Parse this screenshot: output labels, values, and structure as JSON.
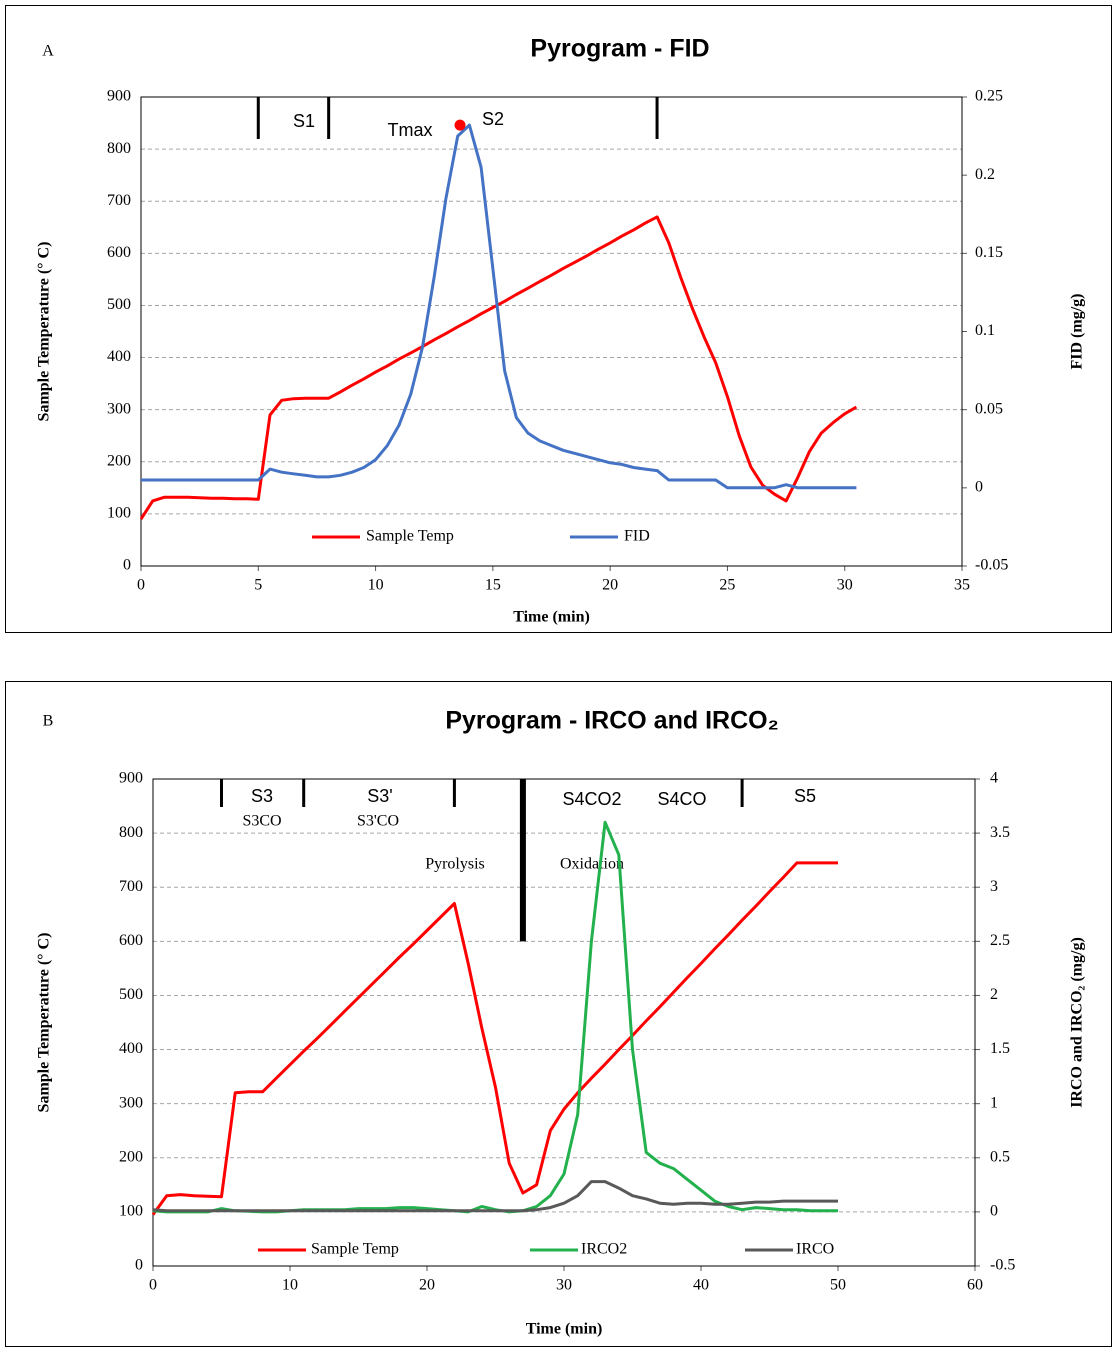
{
  "chart_data": [
    {
      "type": "line",
      "panel": "A",
      "title": "Pyrogram - FID",
      "xlabel": "Time (min)",
      "ylabel": "Sample Temperature (° C)",
      "y2label": "FID (mg/g)",
      "xlim": [
        0,
        35
      ],
      "xticks": [
        0,
        5,
        10,
        15,
        20,
        25,
        30,
        35
      ],
      "ylim": [
        0,
        900
      ],
      "yticks": [
        0,
        100,
        200,
        300,
        400,
        500,
        600,
        700,
        800,
        900
      ],
      "y2lim": [
        -0.05,
        0.25
      ],
      "y2ticks": [
        -0.05,
        0,
        0.05,
        0.1,
        0.15,
        0.2,
        0.25
      ],
      "grid": true,
      "x": [
        0,
        0.5,
        1,
        1.5,
        2,
        2.5,
        3,
        3.5,
        4,
        4.5,
        5,
        5.5,
        6,
        6.5,
        7,
        7.5,
        8,
        8.5,
        9,
        9.5,
        10,
        10.5,
        11,
        11.5,
        12,
        12.5,
        13,
        13.5,
        14,
        14.5,
        15,
        15.5,
        16,
        16.5,
        17,
        17.5,
        18,
        18.5,
        19,
        19.5,
        20,
        20.5,
        21,
        21.5,
        22,
        22.5,
        23,
        23.5,
        24,
        24.5,
        25,
        25.5,
        26,
        26.5,
        27,
        27.5,
        28,
        28.5,
        29,
        29.5,
        30,
        30.5
      ],
      "series": [
        {
          "name": "Sample Temp",
          "color": "#ff0000",
          "values": [
            90,
            125,
            132,
            132,
            132,
            131,
            130,
            130,
            129,
            129,
            128,
            290,
            318,
            321,
            322,
            322,
            322,
            334,
            347,
            359,
            372,
            384,
            397,
            409,
            421,
            434,
            446,
            459,
            471,
            484,
            496,
            508,
            521,
            533,
            546,
            558,
            571,
            583,
            595,
            608,
            620,
            633,
            645,
            658,
            670,
            620,
            555,
            495,
            440,
            390,
            325,
            250,
            190,
            155,
            138,
            125,
            170,
            220,
            255,
            275,
            292,
            305
          ]
        },
        {
          "name": "FID",
          "color": "#4472c4",
          "axis": "y2",
          "values": [
            0.005,
            0.005,
            0.005,
            0.005,
            0.005,
            0.005,
            0.005,
            0.005,
            0.005,
            0.005,
            0.005,
            0.012,
            0.01,
            0.009,
            0.008,
            0.007,
            0.007,
            0.008,
            0.01,
            0.013,
            0.018,
            0.027,
            0.04,
            0.06,
            0.09,
            0.135,
            0.185,
            0.225,
            0.232,
            0.205,
            0.14,
            0.075,
            0.045,
            0.035,
            0.03,
            0.027,
            0.024,
            0.022,
            0.02,
            0.018,
            0.016,
            0.015,
            0.013,
            0.012,
            0.011,
            0.005,
            0.005,
            0.005,
            0.005,
            0.005,
            0,
            0,
            0,
            0,
            0,
            0.002,
            0,
            0,
            0,
            0,
            0,
            0
          ]
        }
      ],
      "marker": {
        "x": 13.6,
        "y": 0.232,
        "axis": "y2",
        "color": "#ff0000"
      },
      "dividers": [
        5,
        8,
        22
      ],
      "annotations": [
        "S1",
        "Tmax",
        "S2"
      ]
    },
    {
      "type": "line",
      "panel": "B",
      "title": "Pyrogram - IRCO and IRCO₂",
      "xlabel": "Time (min)",
      "ylabel": "Sample Temperature (° C)",
      "y2label": "IRCO and IRCO₂  (mg/g)",
      "xlim": [
        0,
        60
      ],
      "xticks": [
        0,
        10,
        20,
        30,
        40,
        50,
        60
      ],
      "ylim": [
        0,
        900
      ],
      "yticks": [
        0,
        100,
        200,
        300,
        400,
        500,
        600,
        700,
        800,
        900
      ],
      "y2lim": [
        -0.5,
        4
      ],
      "y2ticks": [
        -0.5,
        0,
        0.5,
        1,
        1.5,
        2,
        2.5,
        3,
        3.5,
        4
      ],
      "grid": true,
      "x": [
        0,
        1,
        2,
        3,
        4,
        5,
        6,
        7,
        8,
        9,
        10,
        11,
        12,
        13,
        14,
        15,
        16,
        17,
        18,
        19,
        20,
        21,
        22,
        23,
        24,
        25,
        26,
        27,
        28,
        29,
        30,
        31,
        32,
        33,
        34,
        35,
        36,
        37,
        38,
        39,
        40,
        41,
        42,
        43,
        44,
        45,
        46,
        47,
        48,
        49,
        50
      ],
      "series": [
        {
          "name": "Sample Temp",
          "color": "#ff0000",
          "values": [
            95,
            130,
            132,
            130,
            129,
            128,
            320,
            322,
            322,
            347,
            372,
            397,
            421,
            446,
            471,
            496,
            521,
            546,
            571,
            595,
            620,
            645,
            670,
            560,
            440,
            330,
            190,
            135,
            150,
            250,
            290,
            320,
            347,
            373,
            400,
            426,
            453,
            479,
            506,
            533,
            559,
            586,
            612,
            639,
            665,
            692,
            718,
            745,
            745,
            745,
            745
          ]
        },
        {
          "name": "IRCO2",
          "color": "#22b14c",
          "axis": "y2",
          "values": [
            0.01,
            0,
            0,
            0,
            0,
            0.03,
            0.01,
            0.005,
            0,
            0,
            0.01,
            0.02,
            0.02,
            0.02,
            0.02,
            0.03,
            0.03,
            0.03,
            0.04,
            0.04,
            0.03,
            0.02,
            0.01,
            0,
            0.05,
            0.02,
            0,
            0.01,
            0.05,
            0.15,
            0.35,
            0.9,
            2.5,
            3.6,
            3.3,
            1.5,
            0.55,
            0.45,
            0.4,
            0.3,
            0.2,
            0.1,
            0.05,
            0.02,
            0.04,
            0.03,
            0.02,
            0.02,
            0.01,
            0.01,
            0.01
          ]
        },
        {
          "name": "IRCO",
          "color": "#595959",
          "axis": "y2",
          "values": [
            0.02,
            0.01,
            0.01,
            0.01,
            0.01,
            0.01,
            0.01,
            0.01,
            0.01,
            0.01,
            0.01,
            0.01,
            0.01,
            0.01,
            0.01,
            0.01,
            0.01,
            0.01,
            0.01,
            0.01,
            0.01,
            0.01,
            0.01,
            0.01,
            0.01,
            0.01,
            0.01,
            0.01,
            0.02,
            0.04,
            0.08,
            0.15,
            0.28,
            0.28,
            0.22,
            0.15,
            0.12,
            0.08,
            0.07,
            0.08,
            0.08,
            0.07,
            0.07,
            0.08,
            0.09,
            0.09,
            0.1,
            0.1,
            0.1,
            0.1,
            0.1
          ]
        }
      ],
      "dividers": [
        5,
        11,
        22,
        43
      ],
      "phase_split": {
        "x": 27,
        "y": 600
      },
      "annotations": [
        "S3",
        "S3CO",
        "S3'",
        "S3'CO",
        "Pyrolysis",
        "Oxidation",
        "S4CO2",
        "S4CO",
        "S5"
      ]
    }
  ]
}
